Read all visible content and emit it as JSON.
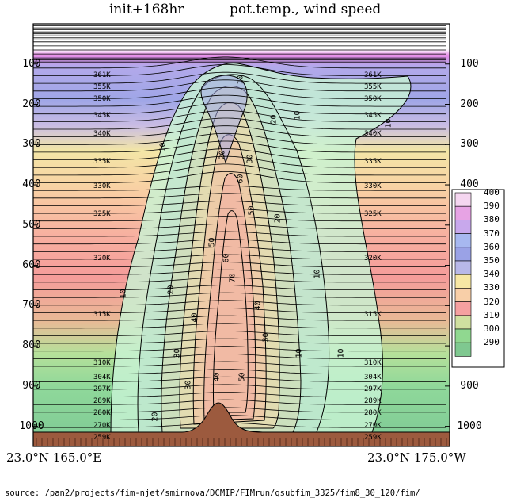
{
  "header": {
    "left": "init+168hr",
    "right": "pot.temp., wind speed"
  },
  "footer": {
    "source": "source: /pan2/projects/fim-njet/smirnova/DCMIP/FIMrun/qsubfim_3325/fim8_30_120/fim/"
  },
  "chart_data": {
    "type": "heatmap",
    "title": "init+168hr      pot.temp., wind speed",
    "x_start_label": "23.0°N 165.0°E",
    "x_end_label": "23.0°N 175.0°W",
    "y_ticks_left": [
      "100",
      "200",
      "300",
      "400",
      "500",
      "600",
      "700",
      "800",
      "900",
      "1000"
    ],
    "y_ticks_right": [
      "100",
      "200",
      "300",
      "400",
      "900",
      "1000"
    ],
    "ylim": [
      0,
      1050
    ],
    "y_axis": "pressure (inverted)",
    "theta_labels": [
      "361K",
      "355K",
      "350K",
      "345K",
      "340K",
      "335K",
      "330K",
      "325K",
      "320K",
      "315K",
      "310K",
      "304K",
      "297K",
      "289K",
      "280K",
      "270K",
      "259K"
    ],
    "theta_label_pressures": [
      130,
      160,
      190,
      230,
      275,
      345,
      405,
      475,
      585,
      725,
      845,
      880,
      910,
      940,
      970,
      1000,
      1030
    ],
    "wind_contour_labels": [
      "10",
      "20",
      "30",
      "40",
      "50",
      "60",
      "70"
    ],
    "colorbar": {
      "ticks": [
        "400",
        "390",
        "380",
        "370",
        "360",
        "350",
        "340",
        "330",
        "320",
        "310",
        "300",
        "290"
      ],
      "colors": [
        "#ffffff",
        "#f5d6f0",
        "#e7a3e4",
        "#c8a8ec",
        "#a7b8f0",
        "#9aa2e6",
        "#b8b8e8",
        "#f7e7a4",
        "#f8cfa8",
        "#f5a0a0",
        "#d0e0a0",
        "#90d890",
        "#7fc890"
      ]
    },
    "colors": {
      "terrain": "#9c5a3e",
      "wind_fill": "#c8f3d4",
      "contour": "#000000"
    }
  }
}
